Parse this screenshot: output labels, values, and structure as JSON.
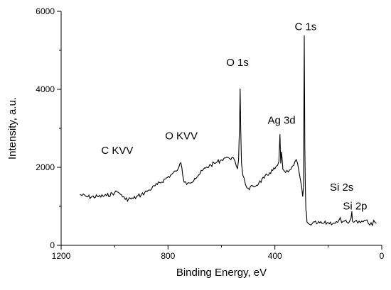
{
  "chart_data": {
    "type": "line",
    "title": "",
    "xlabel": "Binding Energy, eV",
    "ylabel": "Intensity, a.u.",
    "xlim": [
      1200,
      0
    ],
    "ylim": [
      0,
      6000
    ],
    "x_reversed": true,
    "xticks": [
      1200,
      800,
      400,
      0
    ],
    "yticks": [
      0,
      2000,
      4000,
      6000
    ],
    "xtick_labels": [
      "1200",
      "800",
      "400",
      "0"
    ],
    "ytick_labels": [
      "0",
      "2000",
      "4000",
      "6000"
    ],
    "grid": false,
    "legend": "none",
    "line_color": "#000000",
    "series": [
      {
        "x": [
          1130,
          1100,
          1060,
          1030,
          1000,
          990,
          975,
          960,
          930,
          900,
          870,
          840,
          810,
          790,
          770,
          760,
          755,
          752,
          748,
          745,
          740,
          730,
          720,
          700,
          680,
          660,
          640,
          620,
          600,
          590,
          580,
          570,
          565,
          560,
          555,
          550,
          545,
          540,
          536,
          532,
          530,
          528,
          525,
          520,
          510,
          500,
          480,
          460,
          440,
          420,
          400,
          390,
          385,
          381,
          378,
          375,
          370,
          360,
          350,
          340,
          330,
          320,
          315,
          310,
          305,
          300,
          296,
          293,
          290,
          288,
          286,
          284,
          282,
          280,
          275,
          270,
          260,
          240,
          220,
          200,
          180,
          165,
          160,
          155,
          150,
          140,
          130,
          120,
          115,
          112,
          110,
          107,
          105,
          100,
          90,
          80,
          70,
          60,
          50,
          45,
          40,
          35,
          30,
          20
        ],
        "y": [
          1300,
          1240,
          1250,
          1270,
          1350,
          1370,
          1300,
          1180,
          1200,
          1300,
          1420,
          1560,
          1700,
          1800,
          1900,
          2000,
          2100,
          2120,
          1980,
          1800,
          1620,
          1560,
          1600,
          1720,
          1840,
          1980,
          2060,
          2120,
          2190,
          2240,
          2260,
          2230,
          2200,
          2260,
          2240,
          2170,
          2050,
          1960,
          2200,
          3200,
          4020,
          3000,
          2100,
          1800,
          1560,
          1460,
          1500,
          1600,
          1720,
          1860,
          1960,
          2050,
          2150,
          2850,
          2100,
          2400,
          1950,
          1870,
          1880,
          1950,
          2050,
          2200,
          2100,
          1900,
          1700,
          1500,
          1250,
          1500,
          5380,
          2500,
          1500,
          900,
          850,
          600,
          560,
          540,
          560,
          570,
          560,
          580,
          570,
          590,
          650,
          710,
          580,
          620,
          590,
          620,
          700,
          870,
          620,
          600,
          590,
          620,
          570,
          580,
          600,
          640,
          560,
          520,
          580,
          510,
          640,
          560
        ]
      }
    ],
    "annotations": [
      {
        "text": "C KVV",
        "x": 990,
        "y": 2350
      },
      {
        "text": "O KVV",
        "x": 750,
        "y": 2720
      },
      {
        "text": "O 1s",
        "x": 540,
        "y": 4600
      },
      {
        "text": "Ag 3d",
        "x": 375,
        "y": 3120
      },
      {
        "text": "C 1s",
        "x": 285,
        "y": 5520
      },
      {
        "text": "Si 2s",
        "x": 150,
        "y": 1400
      },
      {
        "text": "Si 2p",
        "x": 100,
        "y": 920
      }
    ]
  }
}
